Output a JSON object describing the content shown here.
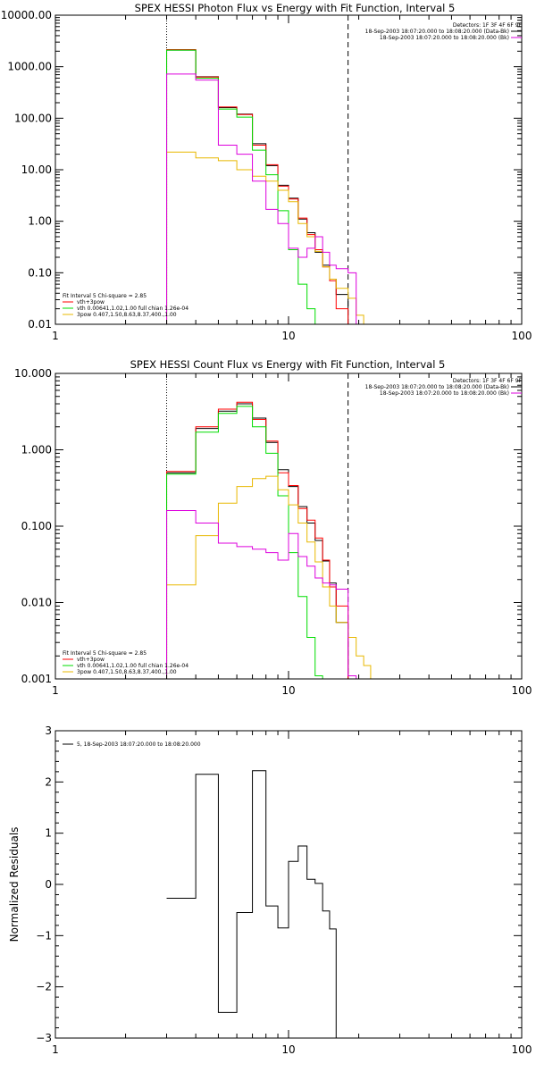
{
  "colors": {
    "black": "#000000",
    "red": "#ff0000",
    "green": "#00dd00",
    "magenta": "#dd00dd",
    "yellow": "#e8b800"
  },
  "chart_data": [
    {
      "type": "line",
      "title": "SPEX HESSI Photon Flux vs Energy with Fit Function, Interval 5",
      "xscale": "log",
      "yscale": "log",
      "xlim": [
        1,
        100
      ],
      "ylim": [
        0.01,
        10000
      ],
      "xticks": [
        1,
        10,
        100
      ],
      "xtick_labels": [
        "1",
        "10",
        "100"
      ],
      "yticks": [
        0.01,
        0.1,
        1,
        10,
        100,
        1000,
        10000
      ],
      "ytick_labels": [
        "0.01",
        "0.10",
        "1.00",
        "10.00",
        "100.00",
        "1000.00",
        "10000.00"
      ],
      "vlines": [
        {
          "x": 3.0,
          "style": "dotted"
        },
        {
          "x": 18.0,
          "style": "dashed"
        }
      ],
      "legend_top_right": [
        {
          "text": "Detectors: 1F 3F 4F 6F 9F",
          "color": "black"
        },
        {
          "text": "18-Sep-2003 18:07:20.000 to 18:08:20.000 (Data-Bk)",
          "color": "black"
        },
        {
          "text": "18-Sep-2003 18:07:20.000 to 18:08:20.000 (Bk)",
          "color": "magenta"
        }
      ],
      "legend_bottom_left": [
        {
          "text": "Fit Interval 5    Chi-square = 2.85",
          "color": "black"
        },
        {
          "text": "vth+3pow",
          "color": "red"
        },
        {
          "text": "vth 0.00641,1.02,1.00  full chian 1.26e-04",
          "color": "green"
        },
        {
          "text": "3pow 0.407,1.50,8.63,8.37,400.,1.00",
          "color": "yellow"
        }
      ],
      "edges": [
        3.0,
        4.0,
        5.0,
        6.0,
        7.0,
        8.0,
        9.0,
        10.0,
        11.0,
        12.0,
        13.0,
        14.0,
        15.0,
        16.0,
        18.0
      ],
      "series": [
        {
          "color": "black",
          "values": [
            2100,
            640,
            160,
            120,
            32,
            12,
            5,
            2.8,
            1.1,
            0.6,
            0.25,
            0.14,
            0.075,
            0.038
          ]
        },
        {
          "color": "red",
          "values": [
            2150,
            630,
            165,
            118,
            30,
            12.5,
            4.8,
            2.7,
            1.15,
            0.55,
            0.28,
            0.13,
            0.07,
            0.02
          ]
        },
        {
          "color": "green",
          "values": [
            2100,
            600,
            150,
            105,
            24,
            8,
            1.6,
            0.28,
            0.06,
            0.02
          ]
        },
        {
          "color": "yellow",
          "values": [
            22,
            17,
            15,
            10,
            7.5,
            6,
            4,
            2.4,
            0.9,
            0.5,
            0.26,
            0.13,
            0.075,
            0.05,
            0.032,
            0.015
          ]
        },
        {
          "color": "magenta",
          "values": [
            720,
            550,
            30,
            20,
            6,
            1.7,
            0.9,
            0.3,
            0.2,
            0.3,
            0.5,
            0.25,
            0.14,
            0.12,
            0.1
          ]
        }
      ]
    },
    {
      "type": "line",
      "title": "SPEX HESSI Count Flux vs Energy with Fit Function, Interval 5",
      "xscale": "log",
      "yscale": "log",
      "xlim": [
        1,
        100
      ],
      "ylim": [
        0.001,
        10
      ],
      "xticks": [
        1,
        10,
        100
      ],
      "xtick_labels": [
        "1",
        "10",
        "100"
      ],
      "yticks": [
        0.001,
        0.01,
        0.1,
        1,
        10
      ],
      "ytick_labels": [
        "0.001",
        "0.010",
        "0.100",
        "1.000",
        "10.000"
      ],
      "vlines": [
        {
          "x": 3.0,
          "style": "dotted"
        },
        {
          "x": 18.0,
          "style": "dashed"
        }
      ],
      "legend_top_right": [
        {
          "text": "Detectors: 1F 3F 4F 6F 9F",
          "color": "black"
        },
        {
          "text": "18-Sep-2003 18:07:20.000 to 18:08:20.000 (Data-Bk)",
          "color": "black"
        },
        {
          "text": "18-Sep-2003 18:07:20.000 to 18:08:20.000 (Bk)",
          "color": "magenta"
        }
      ],
      "legend_bottom_left": [
        {
          "text": "Fit Interval 5    Chi-square = 2.85",
          "color": "black"
        },
        {
          "text": "vth+3pow",
          "color": "red"
        },
        {
          "text": "vth 0.00641,1.02,1.00  full chian 1.26e-04",
          "color": "green"
        },
        {
          "text": "3pow 0.407,1.50,8.63,8.37,400.,1.00",
          "color": "yellow"
        }
      ],
      "edges": [
        3.0,
        4.0,
        5.0,
        6.0,
        7.0,
        8.0,
        9.0,
        10.0,
        11.0,
        12.0,
        13.0,
        14.0,
        15.0,
        16.0,
        18.0
      ],
      "series": [
        {
          "color": "black",
          "values": [
            0.5,
            1.9,
            3.2,
            4.0,
            2.6,
            1.25,
            0.55,
            0.33,
            0.18,
            0.11,
            0.065,
            0.035,
            0.018,
            0.0055
          ]
        },
        {
          "color": "red",
          "values": [
            0.52,
            2.0,
            3.4,
            4.2,
            2.5,
            1.3,
            0.5,
            0.34,
            0.17,
            0.12,
            0.07,
            0.036,
            0.016,
            0.009
          ]
        },
        {
          "color": "green",
          "values": [
            0.48,
            1.7,
            3.0,
            3.7,
            2.0,
            0.9,
            0.25,
            0.045,
            0.012,
            0.0035,
            0.0011
          ]
        },
        {
          "color": "yellow",
          "values": [
            0.017,
            0.075,
            0.2,
            0.33,
            0.42,
            0.45,
            0.3,
            0.19,
            0.11,
            0.062,
            0.034,
            0.016,
            0.009,
            0.0055,
            0.0035,
            0.002,
            0.0015
          ]
        },
        {
          "color": "magenta",
          "values": [
            0.16,
            0.11,
            0.06,
            0.054,
            0.05,
            0.045,
            0.036,
            0.08,
            0.04,
            0.03,
            0.021,
            0.018,
            0.017,
            0.015,
            0.0011
          ]
        }
      ]
    },
    {
      "type": "line",
      "title": "",
      "xscale": "log",
      "yscale": "linear",
      "xlim": [
        1,
        100
      ],
      "ylim": [
        -3,
        3
      ],
      "ylabel": "Normalized Residuals",
      "xticks": [
        1,
        10,
        100
      ],
      "xtick_labels": [
        "1",
        "10",
        "100"
      ],
      "yticks": [
        -3,
        -2,
        -1,
        0,
        1,
        2,
        3
      ],
      "ytick_labels": [
        "−3",
        "−2",
        "−1",
        "0",
        "1",
        "2",
        "3"
      ],
      "legend": {
        "text": "5, 18-Sep-2003 18:07:20.000 to 18:08:20.000",
        "color": "black"
      },
      "edges": [
        3.0,
        4.0,
        5.0,
        6.0,
        7.0,
        8.0,
        9.0,
        10.0,
        11.0,
        12.0,
        13.0,
        14.0,
        15.0,
        16.0,
        18.0
      ],
      "series": [
        {
          "color": "black",
          "values": [
            -0.27,
            2.15,
            -2.5,
            -0.55,
            2.22,
            -0.42,
            -0.85,
            0.45,
            0.75,
            0.1,
            0.02,
            -0.52,
            -0.87
          ]
        }
      ]
    }
  ]
}
